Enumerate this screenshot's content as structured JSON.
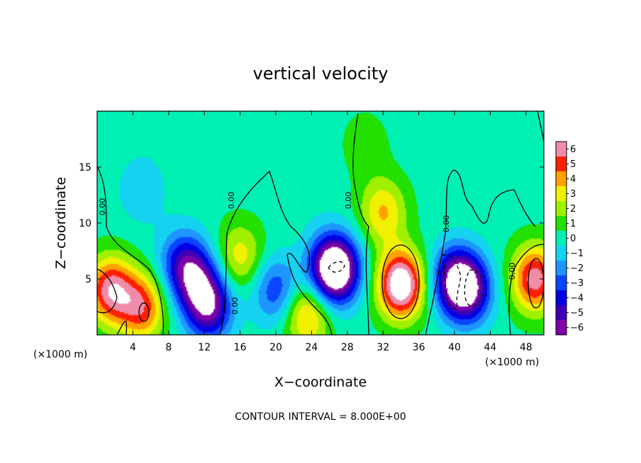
{
  "chart_data": {
    "type": "heatmap",
    "title": "vertical velocity",
    "xlabel": "X−coordinate",
    "ylabel": "Z−coordinate",
    "x_unit": "(×1000 m)",
    "y_unit": "(×1000 m)",
    "x_ticks": [
      4,
      8,
      12,
      16,
      20,
      24,
      28,
      32,
      36,
      40,
      44,
      48
    ],
    "y_ticks": [
      5,
      10,
      15
    ],
    "xlim": [
      0,
      50
    ],
    "ylim": [
      0,
      20
    ],
    "colorbar": {
      "ticks": [
        6,
        5,
        4,
        3,
        2,
        1,
        0,
        -1,
        -2,
        -3,
        -4,
        -5,
        -6
      ],
      "tick_labels": [
        "6",
        "5",
        "4",
        "3",
        "2",
        "1",
        "0",
        "−1",
        "−2",
        "−3",
        "−4",
        "−5",
        "−6"
      ],
      "range": [
        -6,
        6
      ]
    },
    "contour_labels": [
      "0.00",
      "0.00",
      "0.00",
      "0.00",
      "0.00",
      "0.00",
      "0.00"
    ],
    "footer": "CONTOUR INTERVAL = 8.000E+00",
    "features": [
      {
        "x": 34,
        "z": 4.5,
        "value": 8
      },
      {
        "x": 32,
        "z": 11,
        "value": 3.5
      },
      {
        "x": 1.5,
        "z": 4,
        "value": 6
      },
      {
        "x": 5,
        "z": 2.5,
        "value": 5
      },
      {
        "x": 49,
        "z": 5,
        "value": 6
      },
      {
        "x": 23.5,
        "z": 1.8,
        "value": 4
      },
      {
        "x": 16,
        "z": 7,
        "value": 3
      },
      {
        "x": 11,
        "z": 5,
        "value": -4
      },
      {
        "x": 12.5,
        "z": 2.5,
        "value": -6
      },
      {
        "x": 9.5,
        "z": 6.5,
        "value": -3.5
      },
      {
        "x": 26,
        "z": 6,
        "value": -4.5
      },
      {
        "x": 27,
        "z": 5.8,
        "value": -6
      },
      {
        "x": 20,
        "z": 4,
        "value": -3.5
      },
      {
        "x": 40,
        "z": 5,
        "value": -5
      },
      {
        "x": 41.5,
        "z": 4,
        "value": -6
      },
      {
        "x": 5,
        "z": 13,
        "value": -1.5
      },
      {
        "x": 23,
        "z": 13.5,
        "value": -0.5
      },
      {
        "x": 30,
        "z": 17,
        "value": 1
      }
    ]
  }
}
